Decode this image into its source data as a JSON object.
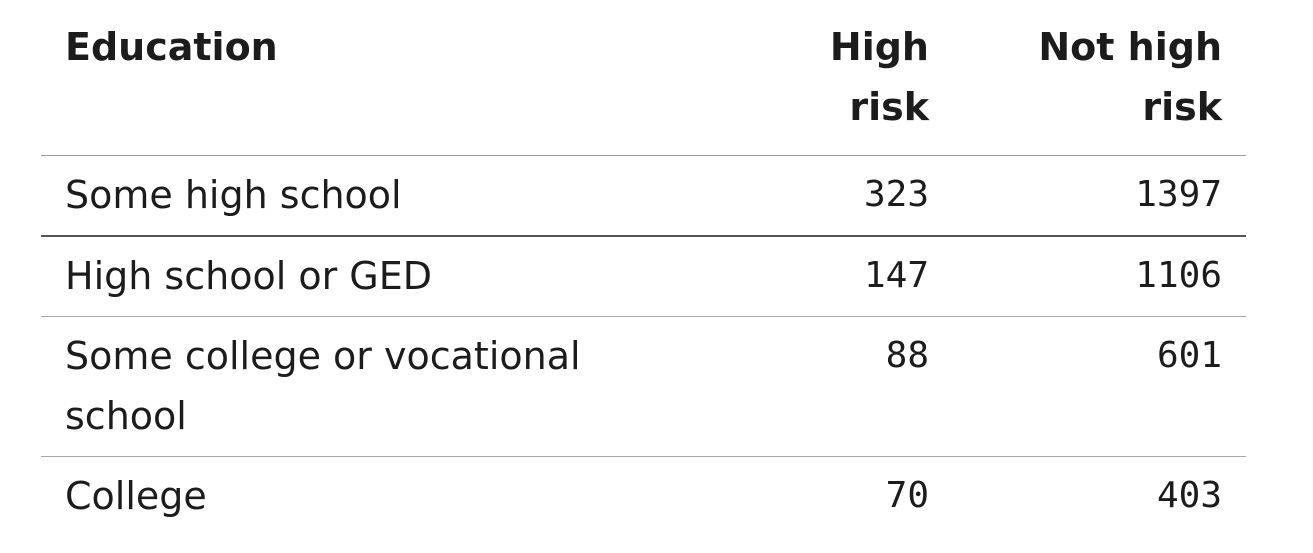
{
  "table": {
    "headers": {
      "education": "Education",
      "high_risk": [
        "High",
        "risk"
      ],
      "not_high_risk": [
        "Not high",
        "risk"
      ]
    },
    "rows": [
      {
        "education": "Some high school",
        "high_risk": "323",
        "not_high_risk": "1397"
      },
      {
        "education": "High school or GED",
        "high_risk": "147",
        "not_high_risk": "1106"
      },
      {
        "education": "Some college or vocational school",
        "high_risk": "88",
        "not_high_risk": "601"
      },
      {
        "education": "College",
        "high_risk": "70",
        "not_high_risk": "403"
      }
    ]
  }
}
